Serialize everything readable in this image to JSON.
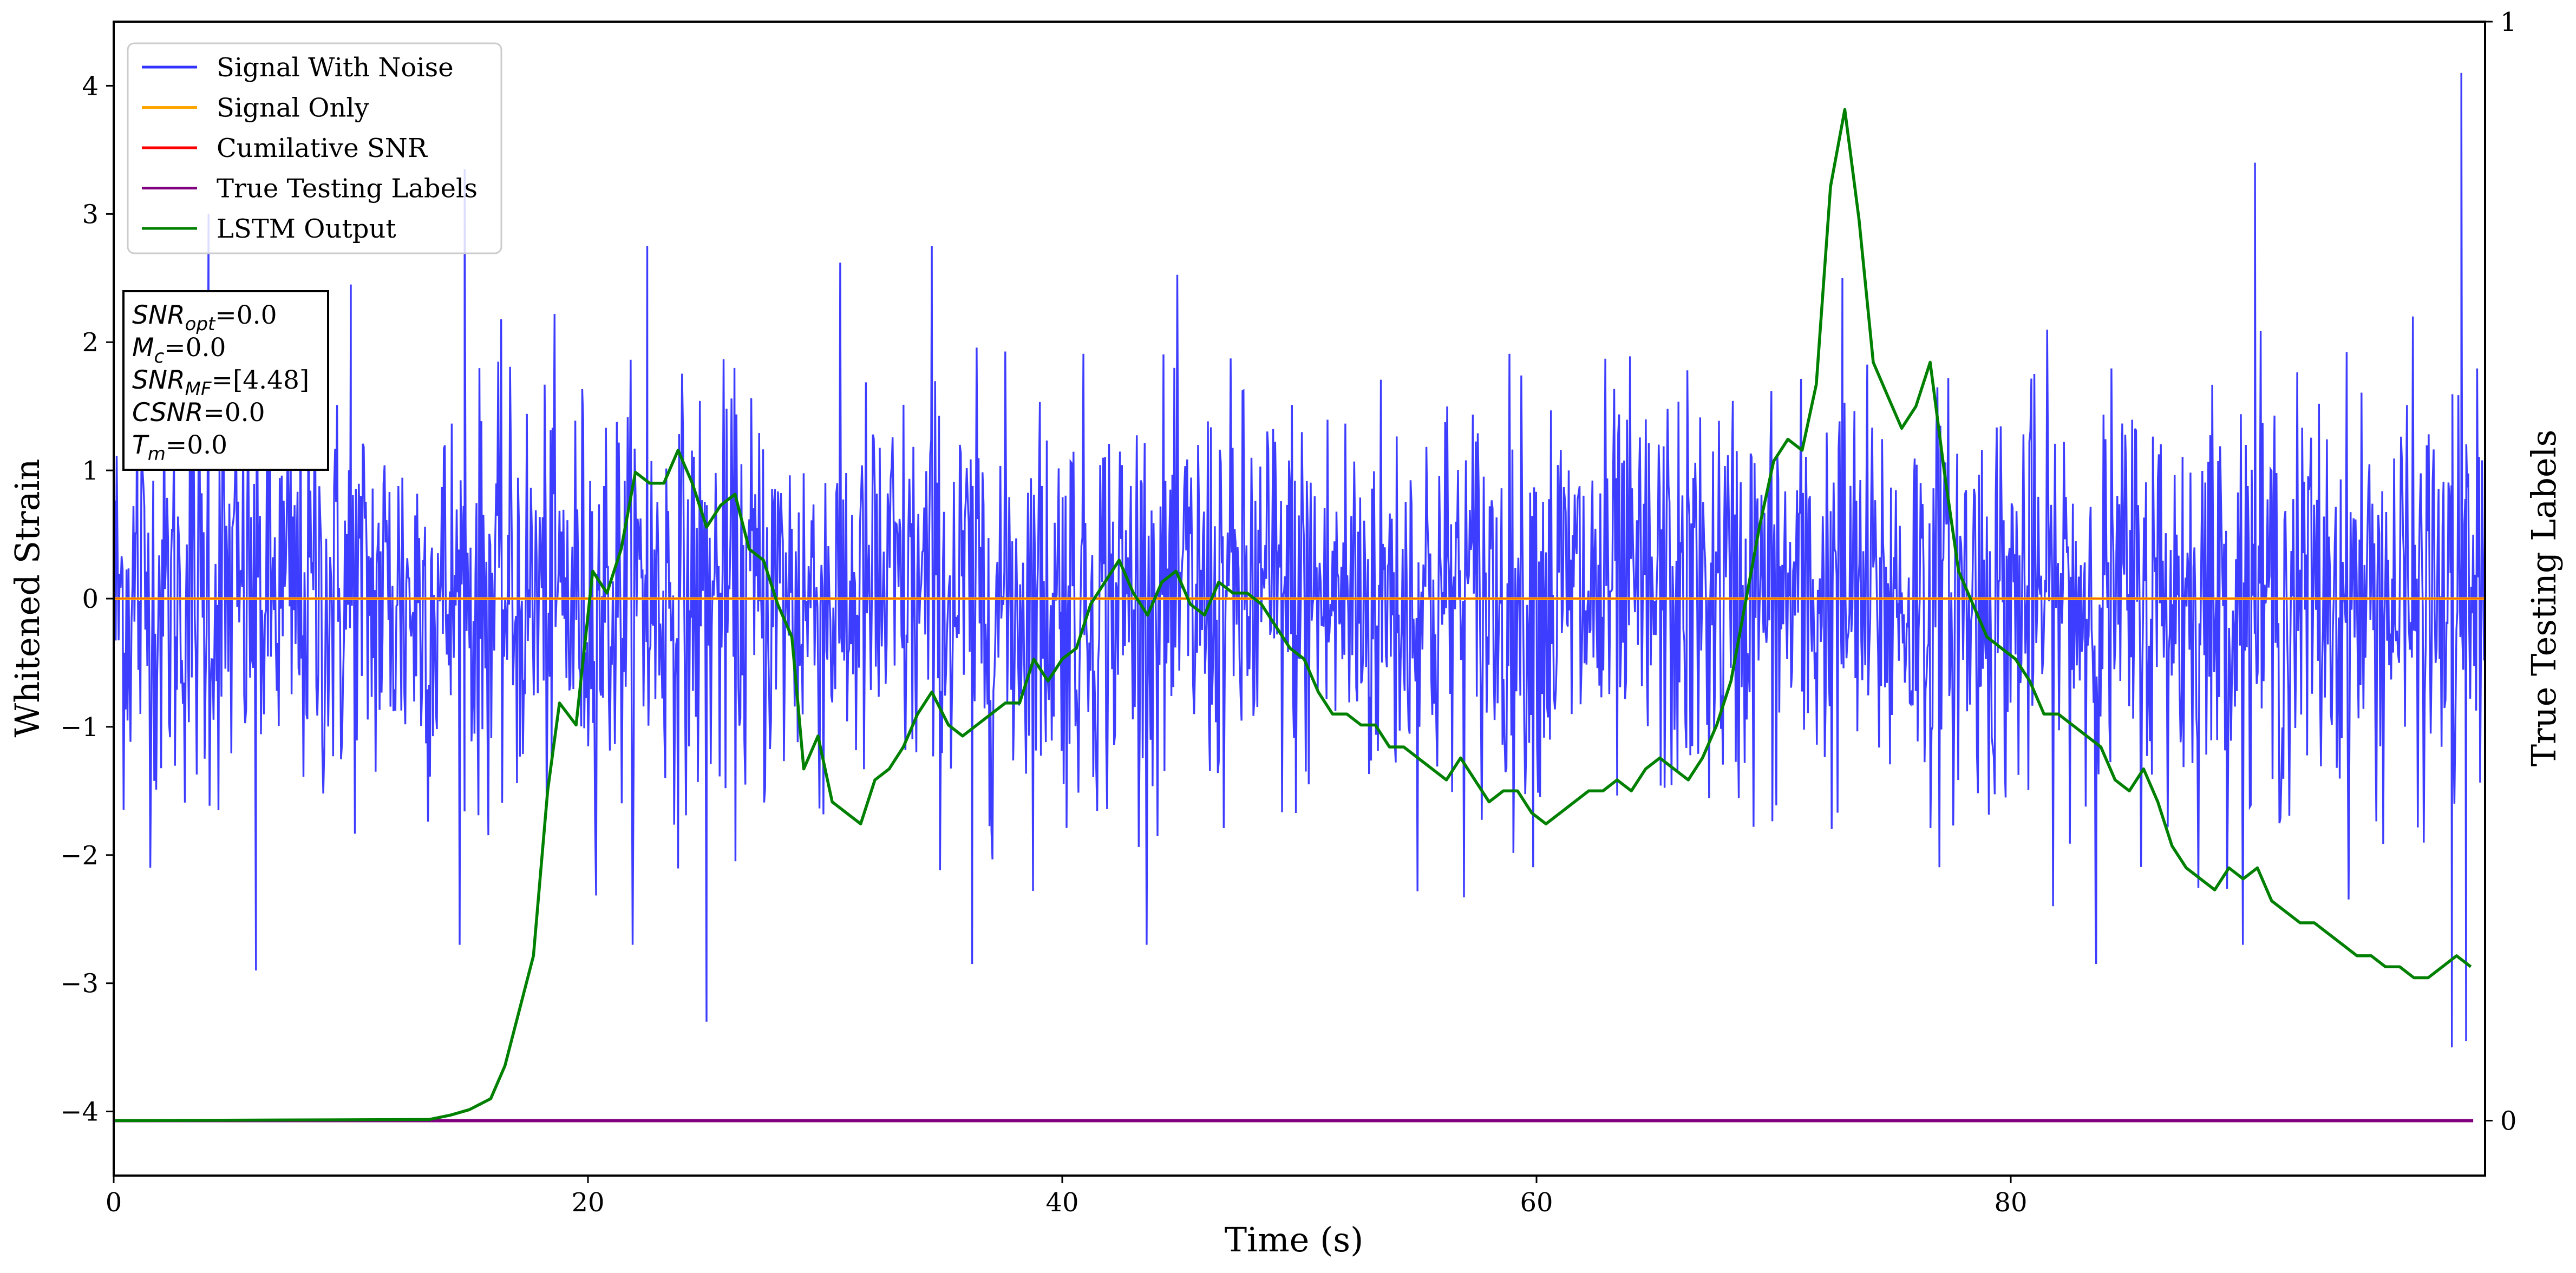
{
  "chart_data": {
    "type": "line",
    "xlabel": "Time (s)",
    "ylabel_left": "Whitened Strain",
    "ylabel_right": "True Testing Labels",
    "xlim": [
      0,
      100
    ],
    "ylim_left": [
      -4.5,
      4.5
    ],
    "ylim_right": [
      -0.05,
      1.0
    ],
    "x_ticks": [
      0,
      20,
      40,
      60,
      80
    ],
    "x_tick_labels": [
      "0",
      "20",
      "40",
      "60",
      "80"
    ],
    "y_ticks_left": [
      -4,
      -3,
      -2,
      -1,
      0,
      1,
      2,
      3,
      4
    ],
    "y_tick_labels_left": [
      "−4",
      "−3",
      "−2",
      "−1",
      "0",
      "1",
      "2",
      "3",
      "4"
    ],
    "y_ticks_right": [
      0,
      1
    ],
    "y_tick_labels_right": [
      "0",
      "1"
    ],
    "grid": false,
    "legend_position": "top-left",
    "legend": [
      {
        "name": "Signal With Noise",
        "color": "#3333ff"
      },
      {
        "name": "Signal Only",
        "color": "#ffa500"
      },
      {
        "name": "Cumilative SNR",
        "color": "#ff0000"
      },
      {
        "name": "True Testing Labels",
        "color": "#800080"
      },
      {
        "name": "LSTM Output",
        "color": "#008000"
      }
    ],
    "series": [
      {
        "name": "Signal With Noise",
        "axis": "left",
        "color": "#3333ff",
        "description_points": "white noise, std approx 0.8, spikes up to about 4.1 and down to about -3.5",
        "noise_std": 0.8,
        "x_range": [
          0,
          100
        ],
        "peak_points": [
          [
            6.0,
            -2.9
          ],
          [
            10.0,
            2.45
          ],
          [
            14.8,
            3.35
          ],
          [
            25.0,
            -3.3
          ],
          [
            72.9,
            2.5
          ],
          [
            98.6,
            -3.5
          ],
          [
            99.0,
            4.1
          ],
          [
            99.2,
            -3.45
          ],
          [
            90.3,
            3.4
          ],
          [
            83.6,
            -2.85
          ],
          [
            36.2,
            -2.85
          ],
          [
            1.0,
            2.25
          ],
          [
            4.0,
            3.0
          ],
          [
            22.5,
            2.75
          ],
          [
            34.5,
            2.75
          ]
        ]
      },
      {
        "name": "Signal Only",
        "axis": "left",
        "color": "#ffa500",
        "x": [
          0,
          100
        ],
        "y": [
          0,
          0
        ]
      },
      {
        "name": "Cumilative SNR",
        "axis": "left",
        "color": "#ff0000",
        "x": [
          0,
          100
        ],
        "y": [
          0,
          0
        ]
      },
      {
        "name": "True Testing Labels",
        "axis": "right",
        "color": "#800080",
        "x": [
          0,
          99.5
        ],
        "y": [
          0,
          0
        ]
      },
      {
        "name": "LSTM Output",
        "axis": "right",
        "color": "#008000",
        "x": [
          0,
          13.3,
          14.2,
          15.0,
          15.9,
          16.5,
          17.1,
          17.7,
          18.3,
          18.8,
          19.5,
          20.2,
          20.8,
          21.4,
          22.0,
          22.6,
          23.2,
          23.8,
          24.4,
          25.0,
          25.6,
          26.2,
          26.8,
          27.4,
          28.0,
          28.6,
          29.1,
          29.7,
          30.3,
          30.9,
          31.5,
          32.1,
          32.7,
          33.3,
          33.9,
          34.5,
          35.2,
          35.8,
          36.4,
          37.0,
          37.6,
          38.2,
          38.8,
          39.4,
          40.0,
          40.6,
          41.2,
          41.8,
          42.4,
          43.0,
          43.6,
          44.2,
          44.8,
          45.4,
          46.0,
          46.6,
          47.2,
          47.8,
          48.4,
          49.0,
          49.6,
          50.2,
          50.8,
          51.4,
          52.0,
          52.6,
          53.2,
          53.8,
          54.4,
          55.0,
          55.6,
          56.2,
          56.8,
          57.4,
          58.0,
          58.6,
          59.2,
          59.8,
          60.4,
          61.0,
          61.6,
          62.2,
          62.8,
          63.4,
          64.0,
          64.6,
          65.2,
          65.8,
          66.4,
          67.0,
          67.6,
          68.2,
          68.8,
          69.4,
          70.0,
          70.6,
          71.2,
          71.8,
          72.4,
          73.0,
          73.6,
          74.2,
          74.8,
          75.4,
          76.0,
          76.6,
          77.2,
          77.8,
          78.4,
          79.0,
          79.6,
          80.2,
          80.8,
          81.4,
          82.0,
          82.6,
          83.2,
          83.8,
          84.4,
          85.0,
          85.6,
          86.2,
          86.8,
          87.4,
          88.0,
          88.6,
          89.2,
          89.8,
          90.4,
          91.0,
          91.6,
          92.2,
          92.8,
          93.4,
          94.0,
          94.6,
          95.2,
          95.8,
          96.4,
          97.0,
          97.6,
          98.2,
          98.8,
          99.4
        ],
        "y": [
          0.0,
          0.001,
          0.005,
          0.01,
          0.02,
          0.05,
          0.1,
          0.15,
          0.3,
          0.38,
          0.36,
          0.5,
          0.48,
          0.52,
          0.59,
          0.58,
          0.58,
          0.61,
          0.58,
          0.54,
          0.56,
          0.57,
          0.52,
          0.51,
          0.47,
          0.44,
          0.32,
          0.35,
          0.29,
          0.28,
          0.27,
          0.31,
          0.32,
          0.34,
          0.37,
          0.39,
          0.36,
          0.35,
          0.36,
          0.37,
          0.38,
          0.38,
          0.42,
          0.4,
          0.42,
          0.43,
          0.47,
          0.49,
          0.51,
          0.48,
          0.46,
          0.49,
          0.5,
          0.47,
          0.46,
          0.49,
          0.48,
          0.48,
          0.47,
          0.45,
          0.43,
          0.42,
          0.39,
          0.37,
          0.37,
          0.36,
          0.36,
          0.34,
          0.34,
          0.33,
          0.32,
          0.31,
          0.33,
          0.31,
          0.29,
          0.3,
          0.3,
          0.28,
          0.27,
          0.28,
          0.29,
          0.3,
          0.3,
          0.31,
          0.3,
          0.32,
          0.33,
          0.32,
          0.31,
          0.33,
          0.36,
          0.4,
          0.47,
          0.54,
          0.6,
          0.62,
          0.61,
          0.67,
          0.85,
          0.92,
          0.82,
          0.69,
          0.66,
          0.63,
          0.65,
          0.69,
          0.59,
          0.5,
          0.47,
          0.44,
          0.43,
          0.42,
          0.4,
          0.37,
          0.37,
          0.36,
          0.35,
          0.34,
          0.31,
          0.3,
          0.32,
          0.29,
          0.25,
          0.23,
          0.22,
          0.21,
          0.23,
          0.22,
          0.23,
          0.2,
          0.19,
          0.18,
          0.18,
          0.17,
          0.16,
          0.15,
          0.15,
          0.14,
          0.14,
          0.13,
          0.13,
          0.14,
          0.15,
          0.14
        ]
      }
    ],
    "annotation_lines": [
      {
        "var": "SNR",
        "sub": "opt",
        "value": "=0.0"
      },
      {
        "var": "M",
        "sub": "c",
        "value": "=0.0"
      },
      {
        "var": "SNR",
        "sub": "MF",
        "value": "=[4.48]"
      },
      {
        "var": "CSNR",
        "sub": "",
        "value": "=0.0"
      },
      {
        "var": "T",
        "sub": "m",
        "value": "=0.0"
      }
    ]
  }
}
